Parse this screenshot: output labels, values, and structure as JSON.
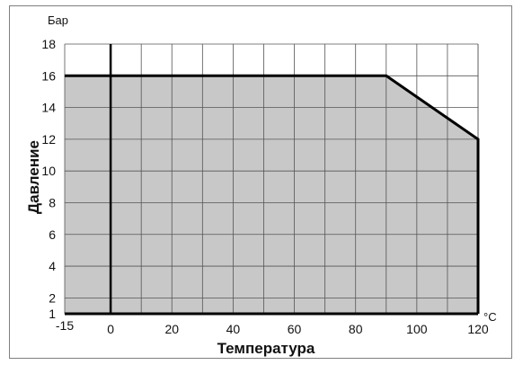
{
  "chart_data": {
    "type": "area",
    "title": "",
    "xlabel": "Температура",
    "ylabel": "Давление",
    "x_unit": "°C",
    "y_unit": "Бар",
    "xlim": [
      -15,
      120
    ],
    "ylim": [
      1,
      18
    ],
    "x_ticks": [
      -15,
      0,
      20,
      40,
      60,
      80,
      100,
      120
    ],
    "y_ticks": [
      1,
      2,
      4,
      6,
      8,
      10,
      12,
      14,
      16,
      18
    ],
    "x_tick_labels": [
      "-15",
      "0",
      "20",
      "40",
      "60",
      "80",
      "100",
      "120"
    ],
    "y_tick_labels": [
      "1",
      "2",
      "4",
      "6",
      "8",
      "10",
      "12",
      "14",
      "16",
      "18"
    ],
    "grid": true,
    "x_grid_step": 10,
    "y_grid_step": 2,
    "reference_line_x": 0,
    "series": [
      {
        "x": [
          -15,
          90,
          120,
          120
        ],
        "y": [
          16,
          16,
          12,
          1
        ]
      }
    ],
    "colors": {
      "fill": "#c8c8c8",
      "grid": "#555555",
      "line": "#000000"
    }
  }
}
